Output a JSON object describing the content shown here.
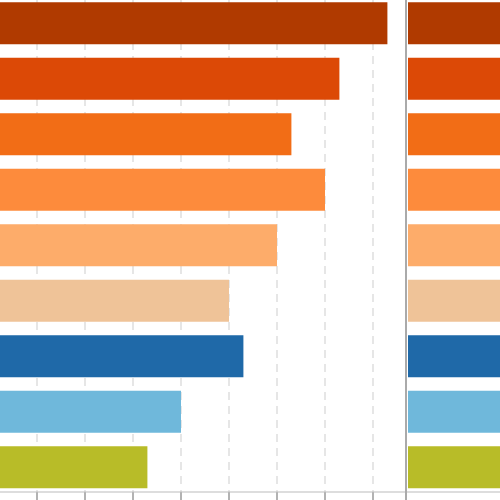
{
  "chart_data": [
    {
      "type": "hbar",
      "values": [
        8.3,
        7.3,
        6.3,
        7.0,
        6.0,
        5.0,
        5.3,
        4.0,
        3.3
      ],
      "colors": [
        "#b03a00",
        "#dc4906",
        "#f26d16",
        "#fd8b3c",
        "#fdac6a",
        "#efc398",
        "#1f69a8",
        "#6fb8db",
        "#b8bc28"
      ],
      "xlim": [
        0,
        8.7
      ],
      "xticks": [
        1,
        2,
        3,
        4,
        5,
        6,
        7,
        8
      ],
      "grid": true
    },
    {
      "type": "hbar",
      "values": [
        1,
        1,
        1,
        1,
        1,
        1,
        1,
        1,
        1
      ],
      "colors": [
        "#b03a00",
        "#dc4906",
        "#f26d16",
        "#fd8b3c",
        "#fdac6a",
        "#efc398",
        "#1f69a8",
        "#6fb8db",
        "#b8bc28"
      ],
      "xlim": [
        0,
        1
      ]
    }
  ]
}
